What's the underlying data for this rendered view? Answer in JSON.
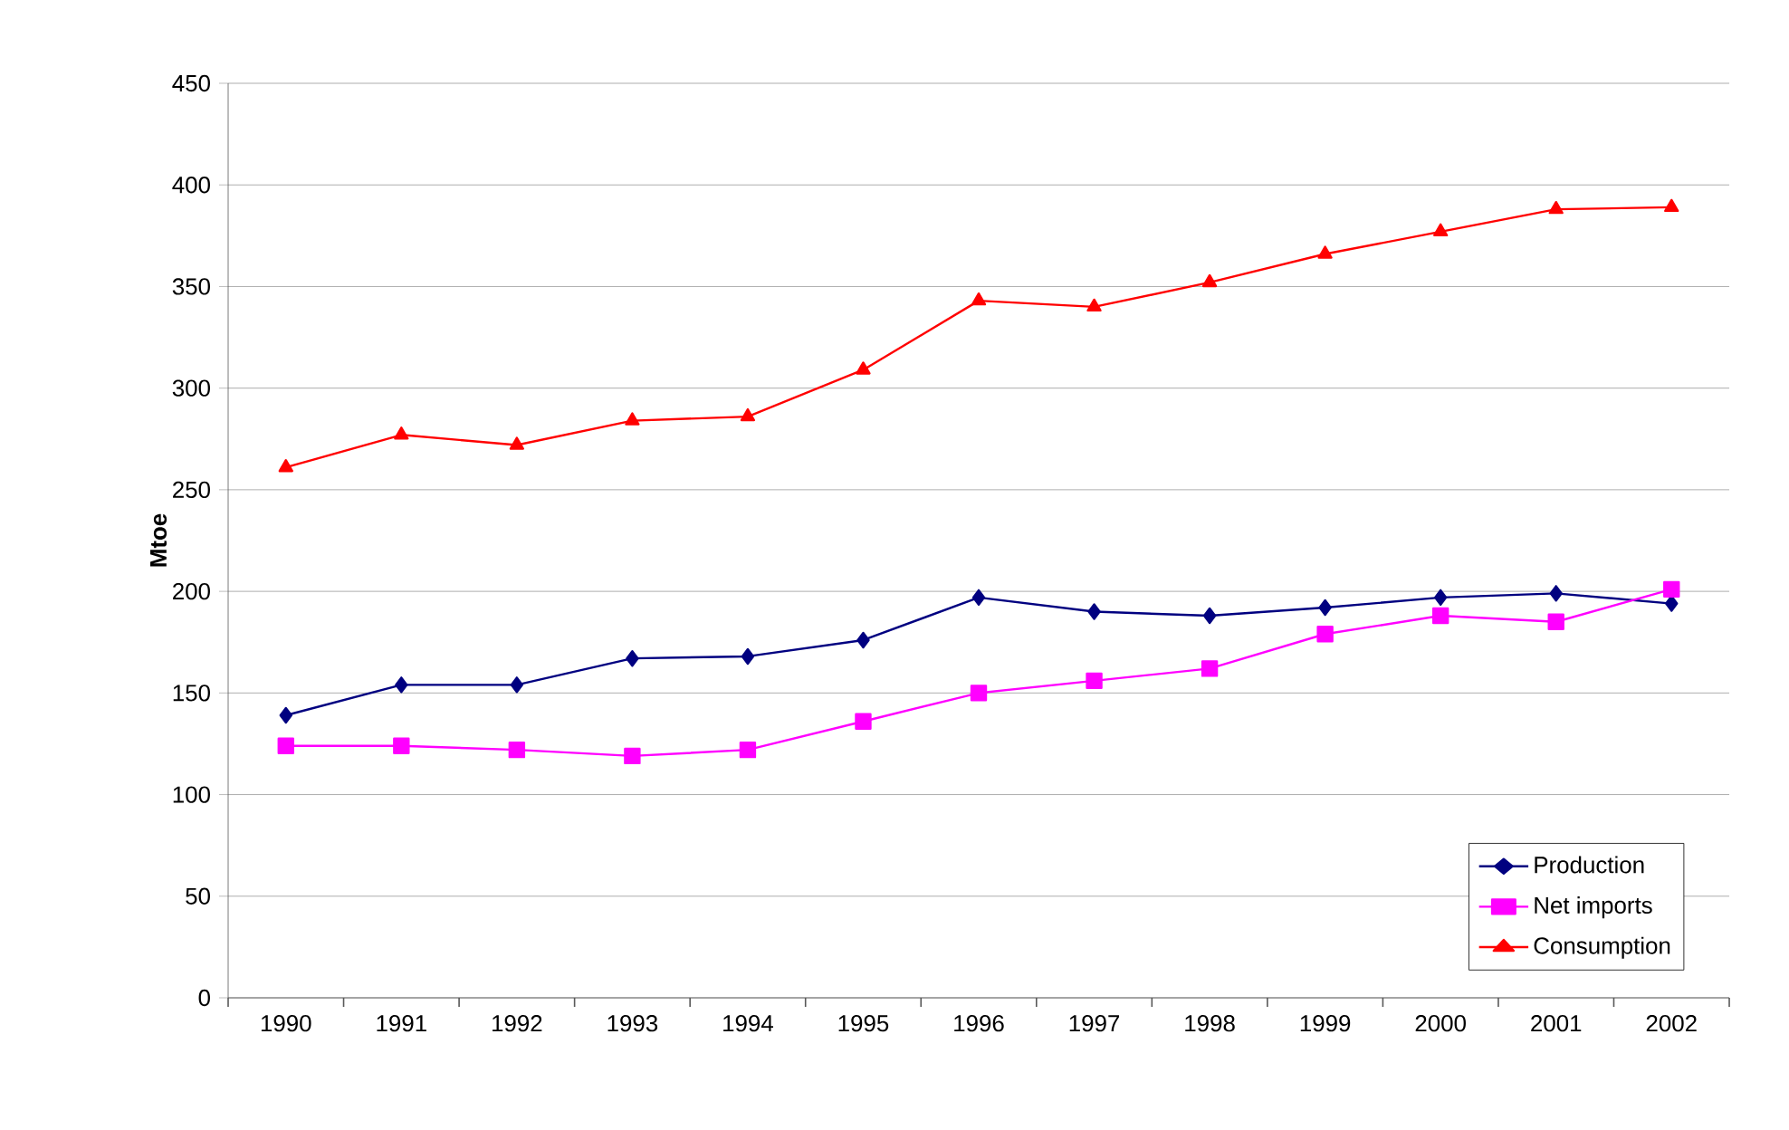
{
  "chart_data": {
    "type": "line",
    "ylabel": "Mtoe",
    "categories": [
      "1990",
      "1991",
      "1992",
      "1993",
      "1994",
      "1995",
      "1996",
      "1997",
      "1998",
      "1999",
      "2000",
      "2001",
      "2002"
    ],
    "series": [
      {
        "name": "Production",
        "color": "#000080",
        "marker": "diamond",
        "values": [
          139,
          154,
          154,
          167,
          168,
          176,
          197,
          190,
          188,
          192,
          197,
          199,
          194
        ]
      },
      {
        "name": "Net imports",
        "color": "#ff00ff",
        "marker": "square",
        "values": [
          124,
          124,
          122,
          119,
          122,
          136,
          150,
          156,
          162,
          179,
          188,
          185,
          201
        ]
      },
      {
        "name": "Consumption",
        "color": "#ff0000",
        "marker": "triangle",
        "values": [
          261,
          277,
          272,
          284,
          286,
          309,
          343,
          340,
          352,
          366,
          377,
          388,
          389
        ]
      }
    ],
    "ylim": [
      0,
      450
    ],
    "yticks": [
      0,
      50,
      100,
      150,
      200,
      250,
      300,
      350,
      400,
      450
    ],
    "grid": "y",
    "legend": "bottom right",
    "line_style": "solid"
  }
}
